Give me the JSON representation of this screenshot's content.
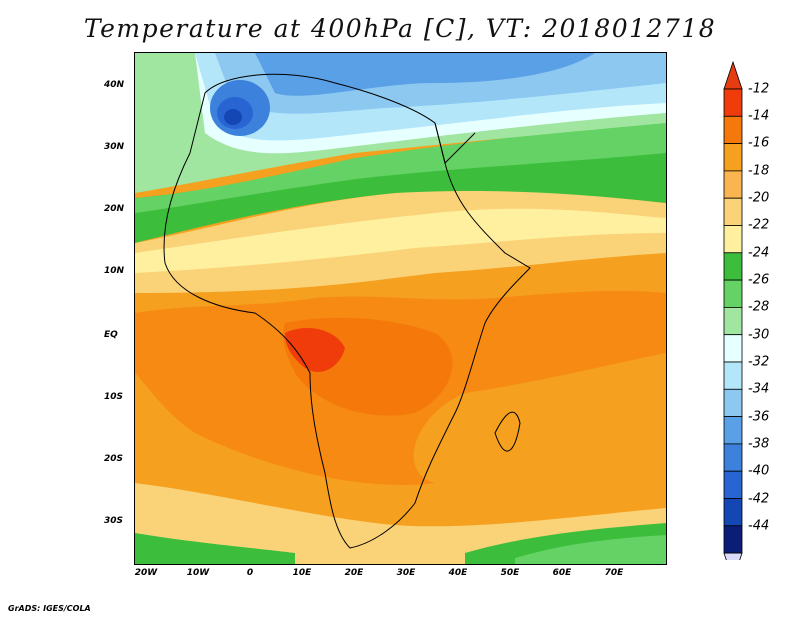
{
  "title": "Temperature at 400hPa [C], VT: 2018012718",
  "credit": "GrADS: IGES/COLA",
  "map": {
    "region": "Africa",
    "lat_range": [
      -37,
      45
    ],
    "lon_range": [
      -22,
      80
    ],
    "lat_ticks": [
      "40N",
      "30N",
      "20N",
      "10N",
      "EQ",
      "10S",
      "20S",
      "30S"
    ],
    "lon_ticks": [
      "20W",
      "10W",
      "0",
      "10E",
      "20E",
      "30E",
      "40E",
      "50E",
      "60E",
      "70E"
    ]
  },
  "colorbar": {
    "levels": [
      "-12",
      "-14",
      "-16",
      "-18",
      "-20",
      "-22",
      "-24",
      "-26",
      "-28",
      "-30",
      "-32",
      "-34",
      "-36",
      "-38",
      "-40",
      "-42",
      "-44"
    ],
    "colors": [
      "#f03c0a",
      "#f5780a",
      "#f5a01e",
      "#fab450",
      "#fad278",
      "#fff0a0",
      "#3cbe3c",
      "#64d264",
      "#a0e6a0",
      "#e6ffff",
      "#b4e6fa",
      "#8cc8f0",
      "#5aa0e6",
      "#3c82dc",
      "#2864d2",
      "#1446b4",
      "#0a1e78"
    ],
    "top_arrow_color": "#e63c14",
    "bottom_arrow_color": "#dcdcfa"
  }
}
